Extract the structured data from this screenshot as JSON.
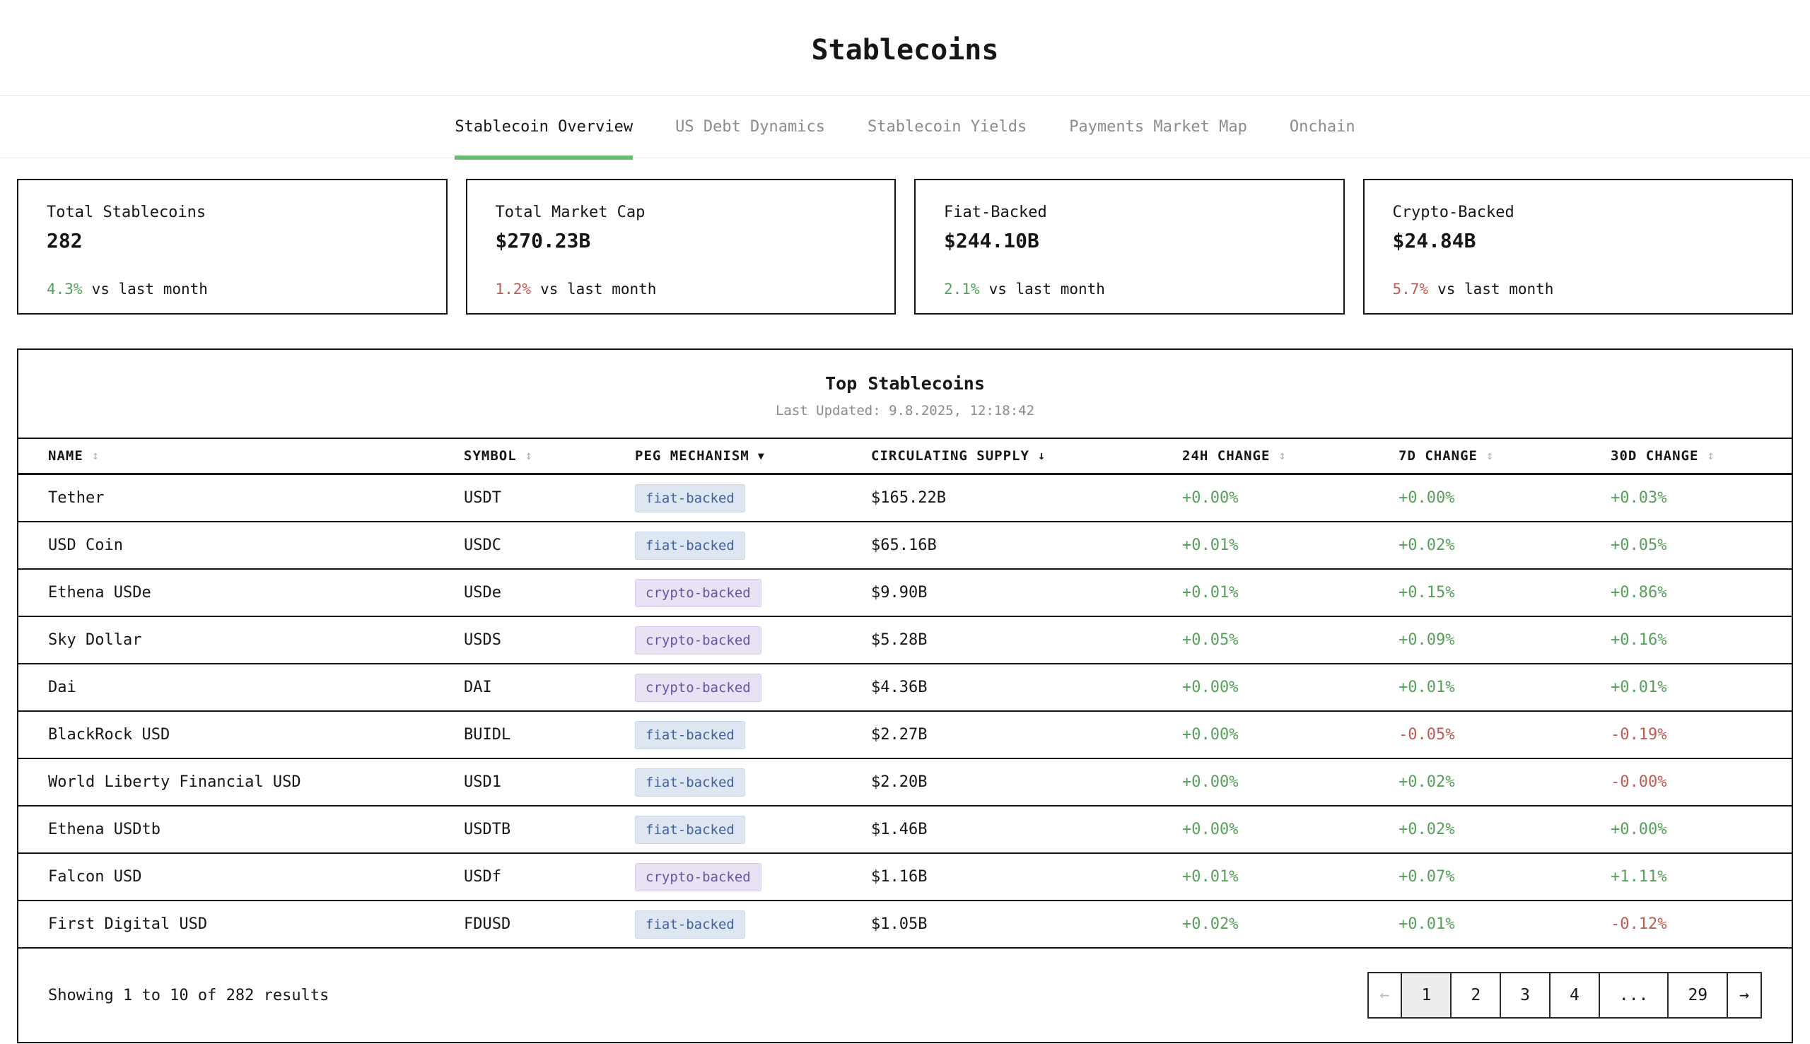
{
  "page": {
    "title": "Stablecoins"
  },
  "tabs": [
    {
      "label": "Stablecoin Overview",
      "active": true
    },
    {
      "label": "US Debt Dynamics",
      "active": false
    },
    {
      "label": "Stablecoin Yields",
      "active": false
    },
    {
      "label": "Payments Market Map",
      "active": false
    },
    {
      "label": "Onchain",
      "active": false
    }
  ],
  "stats": [
    {
      "label": "Total Stablecoins",
      "value": "282",
      "change": "4.3%",
      "direction": "up",
      "suffix": "vs last month"
    },
    {
      "label": "Total Market Cap",
      "value": "$270.23B",
      "change": "1.2%",
      "direction": "down",
      "suffix": "vs last month"
    },
    {
      "label": "Fiat-Backed",
      "value": "$244.10B",
      "change": "2.1%",
      "direction": "up",
      "suffix": "vs last month"
    },
    {
      "label": "Crypto-Backed",
      "value": "$24.84B",
      "change": "5.7%",
      "direction": "down",
      "suffix": "vs last month"
    }
  ],
  "table": {
    "title": "Top Stablecoins",
    "last_updated": "Last Updated: 9.8.2025, 12:18:42",
    "columns": [
      {
        "label": "NAME",
        "icon": "↕",
        "icon_name": "sort-toggle-icon"
      },
      {
        "label": "SYMBOL",
        "icon": "↕",
        "icon_name": "sort-toggle-icon"
      },
      {
        "label": "PEG MECHANISM",
        "icon": "▼",
        "icon_name": "filter-dropdown-icon"
      },
      {
        "label": "CIRCULATING SUPPLY",
        "icon": "↓",
        "icon_name": "sort-descending-icon"
      },
      {
        "label": "24H CHANGE",
        "icon": "↕",
        "icon_name": "sort-toggle-icon"
      },
      {
        "label": "7D CHANGE",
        "icon": "↕",
        "icon_name": "sort-toggle-icon"
      },
      {
        "label": "30D CHANGE",
        "icon": "↕",
        "icon_name": "sort-toggle-icon"
      }
    ],
    "rows": [
      {
        "name": "Tether",
        "symbol": "USDT",
        "peg": "fiat-backed",
        "supply": "$165.22B",
        "c24": "+0.00%",
        "c7": "+0.00%",
        "c30": "+0.03%"
      },
      {
        "name": "USD Coin",
        "symbol": "USDC",
        "peg": "fiat-backed",
        "supply": "$65.16B",
        "c24": "+0.01%",
        "c7": "+0.02%",
        "c30": "+0.05%"
      },
      {
        "name": "Ethena USDe",
        "symbol": "USDe",
        "peg": "crypto-backed",
        "supply": "$9.90B",
        "c24": "+0.01%",
        "c7": "+0.15%",
        "c30": "+0.86%"
      },
      {
        "name": "Sky Dollar",
        "symbol": "USDS",
        "peg": "crypto-backed",
        "supply": "$5.28B",
        "c24": "+0.05%",
        "c7": "+0.09%",
        "c30": "+0.16%"
      },
      {
        "name": "Dai",
        "symbol": "DAI",
        "peg": "crypto-backed",
        "supply": "$4.36B",
        "c24": "+0.00%",
        "c7": "+0.01%",
        "c30": "+0.01%"
      },
      {
        "name": "BlackRock USD",
        "symbol": "BUIDL",
        "peg": "fiat-backed",
        "supply": "$2.27B",
        "c24": "+0.00%",
        "c7": "-0.05%",
        "c30": "-0.19%"
      },
      {
        "name": "World Liberty Financial USD",
        "symbol": "USD1",
        "peg": "fiat-backed",
        "supply": "$2.20B",
        "c24": "+0.00%",
        "c7": "+0.02%",
        "c30": "-0.00%"
      },
      {
        "name": "Ethena USDtb",
        "symbol": "USDTB",
        "peg": "fiat-backed",
        "supply": "$1.46B",
        "c24": "+0.00%",
        "c7": "+0.02%",
        "c30": "+0.00%"
      },
      {
        "name": "Falcon USD",
        "symbol": "USDf",
        "peg": "crypto-backed",
        "supply": "$1.16B",
        "c24": "+0.01%",
        "c7": "+0.07%",
        "c30": "+1.11%"
      },
      {
        "name": "First Digital USD",
        "symbol": "FDUSD",
        "peg": "fiat-backed",
        "supply": "$1.05B",
        "c24": "+0.02%",
        "c7": "+0.01%",
        "c30": "-0.12%"
      }
    ]
  },
  "pagination": {
    "summary": "Showing 1 to 10 of 282 results",
    "prev": "←",
    "next": "→",
    "pages": [
      "1",
      "2",
      "3",
      "4",
      "...",
      "29"
    ],
    "active_page": "1"
  },
  "colors": {
    "green": "#57a05c",
    "red": "#c05b55",
    "accent-green": "#6cbd70",
    "fiat-bg": "#dde6f1",
    "fiat-border": "#c9d7ea",
    "fiat-text": "#42619e",
    "crypto-bg": "#e9e2f5",
    "crypto-border": "#d8cdef",
    "crypto-text": "#6751a5",
    "ink": "#161616",
    "muted": "#8b8b8b",
    "hairline": "#e8e8e8"
  }
}
